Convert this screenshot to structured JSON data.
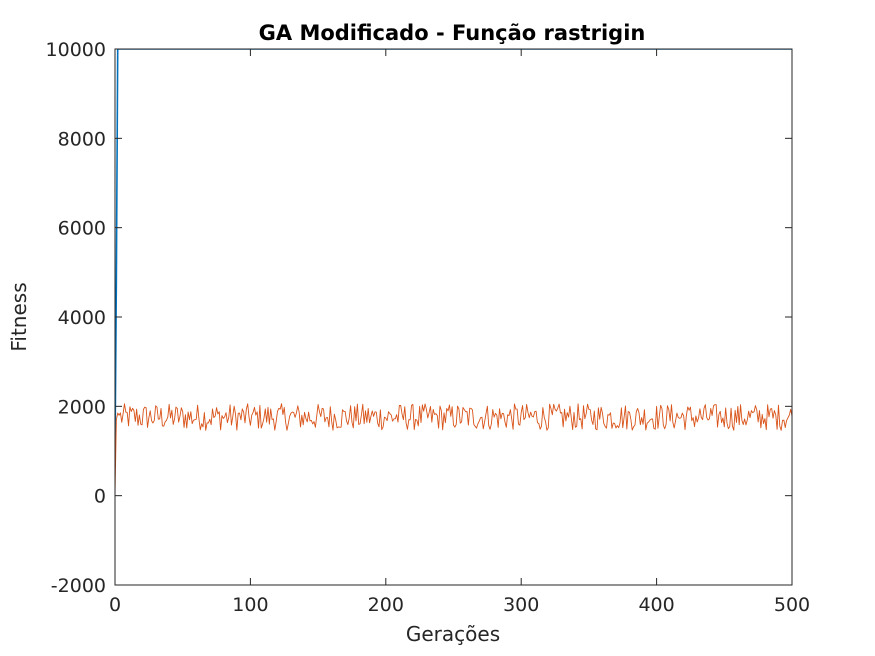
{
  "chart_data": {
    "type": "line",
    "title": "GA Modificado - Função rastrigin",
    "xlabel": "Gerações",
    "ylabel": "Fitness",
    "xlim": [
      0,
      500
    ],
    "ylim": [
      -2000,
      10000
    ],
    "xticks": [
      "0",
      "100",
      "200",
      "300",
      "400",
      "500"
    ],
    "yticks": [
      "-2000",
      "0",
      "2000",
      "4000",
      "6000",
      "8000",
      "10000"
    ],
    "grid": false,
    "colors": {
      "axis": "#262626",
      "series1": "#0072BD",
      "series2": "#D95319"
    },
    "series": [
      {
        "x": [
          0,
          1,
          2,
          3,
          4,
          500
        ],
        "values": [
          900,
          4800,
          10000,
          10000,
          10000,
          10000
        ]
      },
      {
        "x": [
          0,
          1,
          2,
          3
        ],
        "values": [
          0,
          1700,
          1850,
          1800
        ],
        "noise": {
          "from": 3,
          "to": 500,
          "mean": 1760,
          "amplitude": 300
        }
      }
    ]
  }
}
